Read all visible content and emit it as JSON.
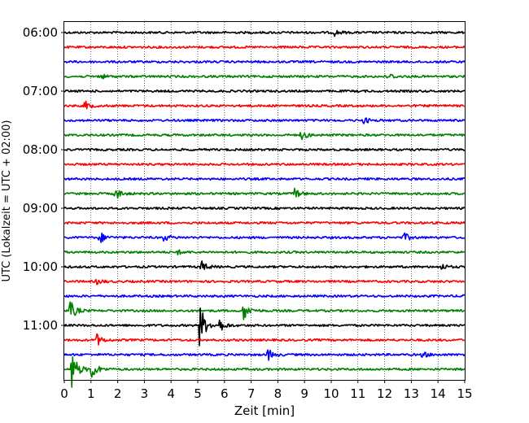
{
  "chart_data": {
    "type": "line",
    "title": "",
    "xlabel": "Zeit  [min]",
    "ylabel": "UTC (Lokalzeit = UTC + 02:00)",
    "xlim": [
      0,
      15
    ],
    "x_ticks": [
      "0",
      "1",
      "2",
      "3",
      "4",
      "5",
      "6",
      "7",
      "8",
      "9",
      "10",
      "11",
      "12",
      "13",
      "14",
      "15"
    ],
    "y_tick_labels": [
      "06:00",
      "07:00",
      "08:00",
      "09:00",
      "10:00",
      "11:00"
    ],
    "grid": "vertical-dotted",
    "trace_colors": [
      "#000000",
      "#ff0000",
      "#0000ff",
      "#008000"
    ],
    "traces": [
      {
        "start": "06:00",
        "events": [
          {
            "t": 10.1,
            "a": 4
          }
        ]
      },
      {
        "start": "06:15",
        "events": []
      },
      {
        "start": "06:30",
        "events": []
      },
      {
        "start": "06:45",
        "events": [
          {
            "t": 1.3,
            "a": 4
          },
          {
            "t": 12.1,
            "a": 5
          }
        ]
      },
      {
        "start": "07:00",
        "events": []
      },
      {
        "start": "07:15",
        "events": [
          {
            "t": 0.75,
            "a": 6
          }
        ]
      },
      {
        "start": "07:30",
        "events": [
          {
            "t": 11.2,
            "a": 4
          }
        ]
      },
      {
        "start": "07:45",
        "events": [
          {
            "t": 8.85,
            "a": 7
          }
        ]
      },
      {
        "start": "08:00",
        "events": []
      },
      {
        "start": "08:15",
        "events": []
      },
      {
        "start": "08:30",
        "events": []
      },
      {
        "start": "08:45",
        "events": [
          {
            "t": 1.9,
            "a": 8
          },
          {
            "t": 8.6,
            "a": 7
          }
        ]
      },
      {
        "start": "09:00",
        "events": []
      },
      {
        "start": "09:15",
        "events": []
      },
      {
        "start": "09:30",
        "events": [
          {
            "t": 1.3,
            "a": 8
          },
          {
            "t": 3.7,
            "a": 5
          },
          {
            "t": 12.7,
            "a": 6
          }
        ]
      },
      {
        "start": "09:45",
        "events": [
          {
            "t": 4.2,
            "a": 3
          }
        ]
      },
      {
        "start": "10:00",
        "events": [
          {
            "t": 5.1,
            "a": 8
          },
          {
            "t": 14.1,
            "a": 4
          }
        ]
      },
      {
        "start": "10:15",
        "events": [
          {
            "t": 1.2,
            "a": 4
          }
        ]
      },
      {
        "start": "10:30",
        "events": [
          {
            "t": 14.9,
            "a": 4
          }
        ]
      },
      {
        "start": "10:45",
        "events": [
          {
            "t": 0.2,
            "a": 14
          },
          {
            "t": 6.7,
            "a": 13
          }
        ]
      },
      {
        "start": "11:00",
        "events": [
          {
            "t": 5.05,
            "a": 30
          },
          {
            "t": 5.8,
            "a": 8
          }
        ]
      },
      {
        "start": "11:15",
        "events": [
          {
            "t": 1.2,
            "a": 8
          }
        ]
      },
      {
        "start": "11:30",
        "events": [
          {
            "t": 7.6,
            "a": 8
          },
          {
            "t": 13.4,
            "a": 4
          }
        ]
      },
      {
        "start": "11:45",
        "events": [
          {
            "t": 0.25,
            "a": 28
          },
          {
            "t": 1.0,
            "a": 14
          }
        ]
      }
    ]
  }
}
